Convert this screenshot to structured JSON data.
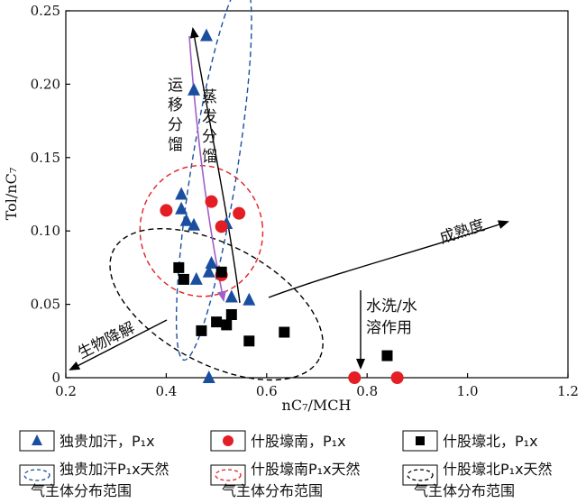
{
  "chart_data": {
    "type": "scatter",
    "xlabel": "nC₇/MCH",
    "ylabel": "Tol/nC₇",
    "xlim": [
      0.2,
      1.2
    ],
    "ylim": [
      0,
      0.25
    ],
    "xticks": [
      "0.2",
      "0.4",
      "0.6",
      "0.8",
      "1.0",
      "1.2"
    ],
    "yticks": [
      "0",
      "0.05",
      "0.10",
      "0.15",
      "0.20",
      "0.25"
    ],
    "grid": false,
    "series": [
      {
        "name": "独贵加汗，P₁x",
        "marker": "triangle",
        "color": "#1a4fa0",
        "points": [
          [
            0.48,
            0.233
          ],
          [
            0.455,
            0.196
          ],
          [
            0.43,
            0.125
          ],
          [
            0.43,
            0.115
          ],
          [
            0.44,
            0.107
          ],
          [
            0.455,
            0.104
          ],
          [
            0.52,
            0.105
          ],
          [
            0.49,
            0.078
          ],
          [
            0.485,
            0.072
          ],
          [
            0.46,
            0.067
          ],
          [
            0.53,
            0.055
          ],
          [
            0.565,
            0.053
          ],
          [
            0.485,
            0.0
          ]
        ]
      },
      {
        "name": "什股壕南，P₁x",
        "marker": "circle",
        "color": "#e31e24",
        "points": [
          [
            0.4,
            0.114
          ],
          [
            0.49,
            0.12
          ],
          [
            0.545,
            0.112
          ],
          [
            0.51,
            0.103
          ],
          [
            0.51,
            0.07
          ],
          [
            0.775,
            0.0
          ],
          [
            0.86,
            0.0
          ]
        ]
      },
      {
        "name": "什股壕北，P₁x",
        "marker": "square",
        "color": "#000000",
        "points": [
          [
            0.425,
            0.075
          ],
          [
            0.435,
            0.067
          ],
          [
            0.51,
            0.072
          ],
          [
            0.53,
            0.043
          ],
          [
            0.5,
            0.038
          ],
          [
            0.52,
            0.036
          ],
          [
            0.47,
            0.032
          ],
          [
            0.565,
            0.025
          ],
          [
            0.635,
            0.031
          ],
          [
            0.84,
            0.015
          ]
        ]
      }
    ],
    "ellipses": [
      {
        "name": "独贵加汗P₁x天然气主体分布范围",
        "color": "#1a4fa0",
        "cx": 0.495,
        "cy": 0.141,
        "rx": 0.132,
        "ry": 0.042,
        "angle_deg": -81
      },
      {
        "name": "什股壕南P₁x天然气主体分布范围",
        "color": "#e31e24",
        "cx": 0.47,
        "cy": 0.1,
        "rx": 0.114,
        "ry": 0.045,
        "angle_deg": -8
      },
      {
        "name": "什股壕北P₁x天然气主体分布范围",
        "color": "#000000",
        "cx": 0.5,
        "cy": 0.05,
        "rx": 0.142,
        "ry": 0.045,
        "angle_deg": 28
      }
    ],
    "annotations": {
      "migration": "运移分馏",
      "evaporation": "蒸发分馏",
      "maturity": "成熟度",
      "biodegradation": "生物降解",
      "washing_line1": "水洗/水",
      "washing_line2": "溶作用"
    },
    "legend": {
      "placement": "bottom",
      "items": [
        {
          "kind": "marker",
          "shape": "triangle",
          "color": "#1a4fa0",
          "label": "独贵加汗，P₁x"
        },
        {
          "kind": "marker",
          "shape": "circle",
          "color": "#e31e24",
          "label": "什股壕南，P₁x"
        },
        {
          "kind": "marker",
          "shape": "square",
          "color": "#000000",
          "label": "什股壕北，P₁x"
        },
        {
          "kind": "ellipse",
          "color": "#1a4fa0",
          "label1": "独贵加汗P₁x天然",
          "label2": "气主体分布范围"
        },
        {
          "kind": "ellipse",
          "color": "#e31e24",
          "label1": "什股壕南P₁x天然",
          "label2": "气主体分布范围"
        },
        {
          "kind": "ellipse",
          "color": "#000000",
          "label1": "什股壕北P₁x天然",
          "label2": "气主体分布范围"
        }
      ]
    }
  }
}
